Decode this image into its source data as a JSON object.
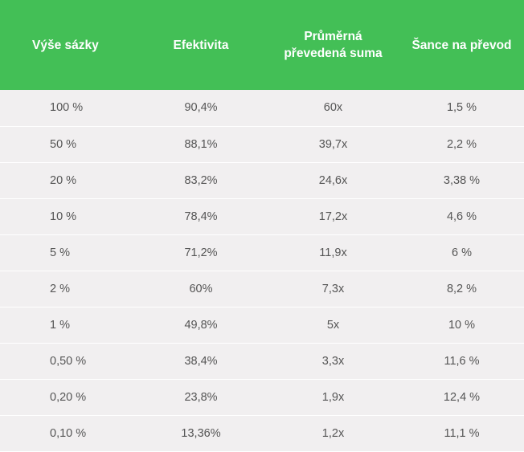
{
  "table": {
    "headers": [
      "Výše sázky",
      "Efektivita",
      "Průměrná převedená suma",
      "Šance na převod"
    ],
    "rows": [
      [
        "100 %",
        "90,4%",
        "60x",
        "1,5 %"
      ],
      [
        "50 %",
        "88,1%",
        "39,7x",
        "2,2 %"
      ],
      [
        "20 %",
        "83,2%",
        "24,6x",
        "3,38 %"
      ],
      [
        "10 %",
        "78,4%",
        "17,2x",
        "4,6 %"
      ],
      [
        "5 %",
        "71,2%",
        "11,9x",
        "6 %"
      ],
      [
        "2 %",
        "60%",
        "7,3x",
        "8,2 %"
      ],
      [
        "1 %",
        "49,8%",
        "5x",
        "10 %"
      ],
      [
        "0,50 %",
        "38,4%",
        "3,3x",
        "11,6 %"
      ],
      [
        "0,20 %",
        "23,8%",
        "1,9x",
        "12,4 %"
      ],
      [
        "0,10 %",
        "13,36%",
        "1,2x",
        "11,1 %"
      ]
    ]
  },
  "colors": {
    "header_bg": "#43bf56",
    "header_text": "#ffffff",
    "row_bg": "#f1eff0",
    "cell_text": "#555555"
  }
}
